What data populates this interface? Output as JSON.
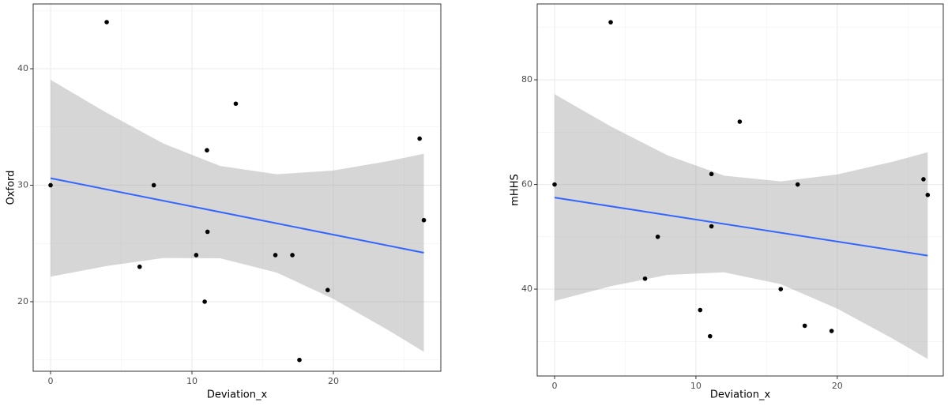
{
  "chart_data": [
    {
      "type": "scatter",
      "xlabel": "Deviation_x",
      "ylabel": "Oxford",
      "x": [
        0,
        3.97,
        6.3,
        7.3,
        10.3,
        11.06,
        11.1,
        10.9,
        13.1,
        15.9,
        17.1,
        17.6,
        19.6,
        26.1,
        26.4
      ],
      "values": [
        30,
        44,
        23,
        30,
        24,
        33,
        26,
        20,
        37,
        24,
        24,
        15,
        21,
        34,
        27
      ],
      "color": "#000000",
      "fit": {
        "x": [
          0,
          26.4
        ],
        "values": [
          30.6,
          24.2
        ],
        "color": "#3366ff"
      },
      "band": {
        "x": [
          0,
          4,
          8,
          12,
          16,
          20,
          24,
          26.4
        ],
        "lower": [
          22.15,
          23.07,
          23.75,
          23.73,
          22.5,
          20.24,
          17.47,
          15.7
        ],
        "upper": [
          39.05,
          36.19,
          33.57,
          31.65,
          30.94,
          31.26,
          32.09,
          32.7
        ],
        "color": "#999999"
      },
      "xlim": [
        -1.23,
        27.6
      ],
      "ylim": [
        14.03,
        45.56
      ],
      "xticks": [
        0,
        10,
        20
      ],
      "yticks": [
        20,
        30,
        40
      ],
      "xminor": [
        5,
        15,
        25
      ],
      "yminor": [
        15,
        25,
        35,
        45
      ],
      "grid": true
    },
    {
      "type": "scatter",
      "xlabel": "Deviation_x",
      "ylabel": "mHHS",
      "x": [
        0,
        3.97,
        6.4,
        7.3,
        10.3,
        11.1,
        11.1,
        11.0,
        13.1,
        16.0,
        17.2,
        17.7,
        19.6,
        26.1,
        26.4
      ],
      "values": [
        60,
        91,
        42,
        50,
        36,
        62,
        52,
        31,
        72,
        40,
        60,
        33,
        32,
        61,
        58
      ],
      "color": "#000000",
      "fit": {
        "x": [
          0,
          26.4
        ],
        "values": [
          57.5,
          46.4
        ],
        "color": "#3366ff"
      },
      "band": {
        "x": [
          0,
          4,
          8,
          12,
          16,
          20,
          24,
          26.4
        ],
        "lower": [
          37.75,
          40.58,
          42.72,
          43.21,
          40.94,
          36.27,
          30.42,
          26.65
        ],
        "upper": [
          77.25,
          71.06,
          65.56,
          61.69,
          60.6,
          61.91,
          64.4,
          66.15
        ],
        "color": "#999999"
      },
      "xlim": [
        -1.23,
        27.5
      ],
      "ylim": [
        23.4,
        94.5
      ],
      "xticks": [
        0,
        10,
        20
      ],
      "yticks": [
        40,
        60,
        80
      ],
      "xminor": [
        5,
        15,
        25
      ],
      "yminor": [
        30,
        50,
        70,
        90
      ],
      "grid": true
    }
  ]
}
